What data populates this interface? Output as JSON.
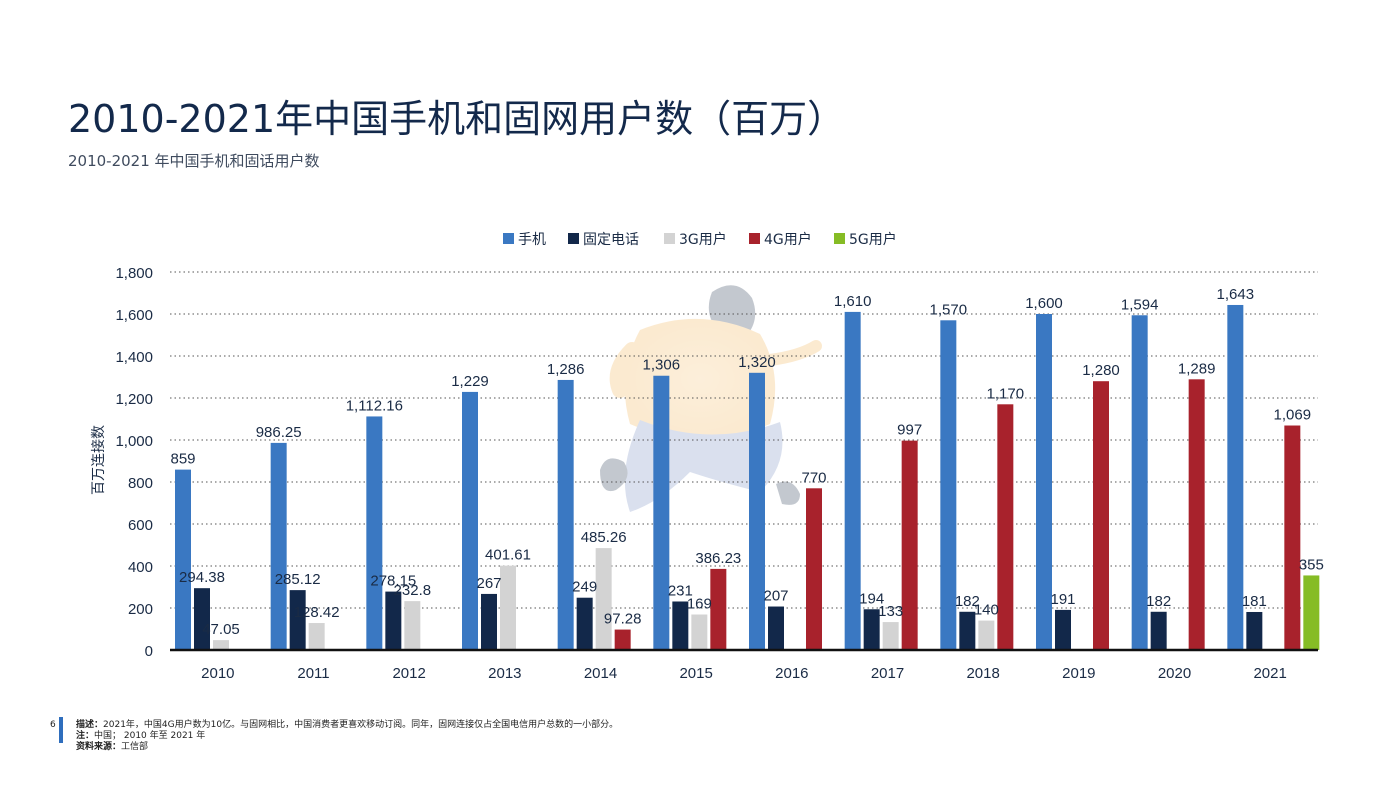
{
  "page": {
    "title": "2010-2021年中国手机和固网用户数（百万）",
    "subtitle": "2010-2021 年中国手机和固话用户数",
    "page_number": "6",
    "footnote": {
      "desc_label": "描述：",
      "desc_text": "2021年，中国4G用户数为10亿。与固网相比，中国消费者更喜欢移动订阅。同年，固网连接仅占全国电信用户总数的一小部分。",
      "note_label": "注：",
      "note_text": "中国； 2010 年至 2021 年",
      "source_label": "资料来源：",
      "source_text": "工信部"
    }
  },
  "chart_data": {
    "type": "bar",
    "ylabel": "百万连接数",
    "ylim": [
      0,
      1800
    ],
    "yticks": [
      0,
      200,
      400,
      600,
      800,
      1000,
      1200,
      1400,
      1600,
      1800
    ],
    "ytick_labels": [
      "0",
      "200",
      "400",
      "600",
      "800",
      "1,000",
      "1,200",
      "1,400",
      "1,600",
      "1,800"
    ],
    "grid": "horizontal-dotted",
    "legend_position": "top",
    "categories": [
      "2010",
      "2011",
      "2012",
      "2013",
      "2014",
      "2015",
      "2016",
      "2017",
      "2018",
      "2019",
      "2020",
      "2021"
    ],
    "series": [
      {
        "name": "手机",
        "color": "#3a78c2",
        "values": [
          859,
          986.25,
          1112.16,
          1229,
          1286,
          1306,
          1320,
          1610,
          1570,
          1600,
          1594,
          1643
        ],
        "labels": [
          "859",
          "986.25",
          "1,112.16",
          "1,229",
          "1,286",
          "1,306",
          "1,320",
          "1,610",
          "1,570",
          "1,600",
          "1,594",
          "1,643"
        ]
      },
      {
        "name": "固定电话",
        "color": "#12284a",
        "values": [
          294.38,
          285.12,
          278.15,
          267,
          249,
          231,
          207,
          194,
          182,
          191,
          182,
          181
        ],
        "labels": [
          "294.38",
          "285.12",
          "278.15",
          "267",
          "249",
          "231",
          "207",
          "194",
          "182",
          "191",
          "182",
          "181"
        ]
      },
      {
        "name": "3G用户",
        "color": "#d3d3d3",
        "values": [
          47.05,
          128.42,
          232.8,
          401.61,
          485.26,
          169,
          null,
          133,
          140,
          null,
          null,
          null
        ],
        "labels": [
          "47.05",
          "128.42",
          "232.8",
          "401.61",
          "485.26",
          "169",
          null,
          "133",
          "140",
          null,
          null,
          null
        ]
      },
      {
        "name": "4G用户",
        "color": "#a8222c",
        "values": [
          null,
          null,
          null,
          null,
          97.28,
          386.23,
          770,
          997,
          1170,
          1280,
          1289,
          1069
        ],
        "labels": [
          null,
          null,
          null,
          null,
          "97.28",
          "386.23",
          "770",
          "997",
          "1,170",
          "1,280",
          "1,289",
          "1,069"
        ]
      },
      {
        "name": "5G用户",
        "color": "#86bc25",
        "values": [
          null,
          null,
          null,
          null,
          null,
          null,
          null,
          null,
          null,
          null,
          null,
          355
        ],
        "labels": [
          null,
          null,
          null,
          null,
          null,
          null,
          null,
          null,
          null,
          null,
          null,
          "355"
        ]
      }
    ]
  }
}
